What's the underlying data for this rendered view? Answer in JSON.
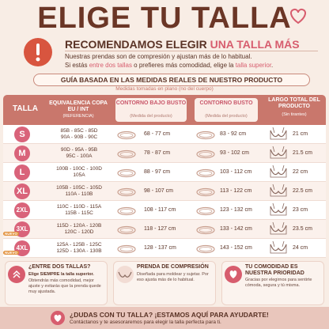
{
  "header": {
    "title": "ELIGE TU TALLA"
  },
  "recommendation": {
    "title": "RECOMENDAMOS ELEGIR",
    "highlight": "UNA TALLA MÁS",
    "line1": "Nuestras prendas son de compresión y ajustan más de lo habitual.",
    "line2": [
      "Si estás ",
      "entre dos tallas",
      " o prefieres más comodidad, elige la ",
      "talla superior",
      "."
    ]
  },
  "guide": {
    "title": "GUÍA BASADA EN LAS MEDIDAS REALES DE NUESTRO PRODUCTO",
    "subtitle": "Medidas tomadas en plano (no del cuerpo)"
  },
  "table": {
    "headers": [
      {
        "title": "TALLA"
      },
      {
        "title": "EQUIVALENCIA COPA EU / INT",
        "note": "(REFERENCIA)"
      },
      {
        "title": "CONTORNO BAJO BUSTO",
        "note": "(Medida del producto)"
      },
      {
        "title": "CONTORNO BUSTO",
        "note": "(Medida del producto)"
      },
      {
        "title": "LARGO TOTAL DEL PRODUCTO",
        "note": "(Sin tirantes)"
      }
    ],
    "rows": [
      {
        "size": "S",
        "cups": [
          "85B - 85C - 85D",
          "90A - 90B - 90C"
        ],
        "underbust": "68 - 77 cm",
        "bust": "83 - 92 cm",
        "length": "21 cm"
      },
      {
        "size": "M",
        "cups": [
          "90D - 95A - 95B",
          "95C - 100A"
        ],
        "underbust": "78 - 87 cm",
        "bust": "93 - 102 cm",
        "length": "21.5 cm"
      },
      {
        "size": "L",
        "cups": [
          "100B - 100C - 100D",
          "105A"
        ],
        "underbust": "88 - 97 cm",
        "bust": "103 - 112 cm",
        "length": "22 cm"
      },
      {
        "size": "XL",
        "cups": [
          "105B - 105C - 105D",
          "110A - 110B"
        ],
        "underbust": "98 - 107 cm",
        "bust": "113 - 122 cm",
        "length": "22.5 cm"
      },
      {
        "size": "2XL",
        "cups": [
          "110C - 110D - 115A",
          "115B - 115C"
        ],
        "underbust": "108 - 117 cm",
        "bust": "123 - 132 cm",
        "length": "23 cm"
      },
      {
        "size": "3XL",
        "badge": "NUEVO",
        "cups": [
          "115D - 120A - 120B",
          "120C - 120D"
        ],
        "underbust": "118 - 127 cm",
        "bust": "133 - 142 cm",
        "length": "23.5 cm"
      },
      {
        "size": "4XL",
        "badge": "NUEVO",
        "cups": [
          "125A - 125B - 125C",
          "125D - 130A - 130B"
        ],
        "underbust": "128 - 137 cm",
        "bust": "143 - 152 cm",
        "length": "24 cm"
      }
    ]
  },
  "tips": [
    {
      "title": "¿ENTRE DOS TALLAS?",
      "subtitle": "Elige SIEMPRE la talla superior.",
      "text": "Obtendrás más comodidad, mejor ajuste y evitarás que la prenda quede muy ajustada."
    },
    {
      "title": "PRENDA DE COMPRESIÓN",
      "text": "Diseñada para moldear y sujetar. Por eso ajusta más de lo habitual."
    },
    {
      "title": "TU COMODIDAD ES NUESTRA PRIORIDAD",
      "text": "Gracias por elegirnos para sentirte cómoda, segura y tú misma."
    }
  ],
  "footer": {
    "title": "¿DUDAS CON TU TALLA? ¡ESTAMOS AQUÍ PARA AYUDARTE!",
    "text": "Contáctanos y te asesoraremos para elegir la talla perfecta para ti."
  }
}
